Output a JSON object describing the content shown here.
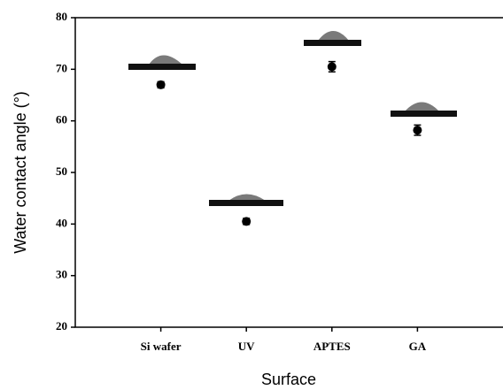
{
  "chart_data": {
    "type": "scatter",
    "x_label": "Surface",
    "y_label": "Water contact angle (°)",
    "categories": [
      "Si wafer",
      "UV",
      "APTES",
      "GA"
    ],
    "series": [
      {
        "color": "#000000",
        "values": [
          67,
          40.5,
          70.5,
          58.2
        ],
        "errors": [
          0.6,
          0.6,
          1,
          1
        ]
      }
    ],
    "ylim": [
      20,
      80
    ],
    "yticks": [
      20,
      30,
      40,
      50,
      60,
      70,
      80
    ],
    "grid": false
  }
}
